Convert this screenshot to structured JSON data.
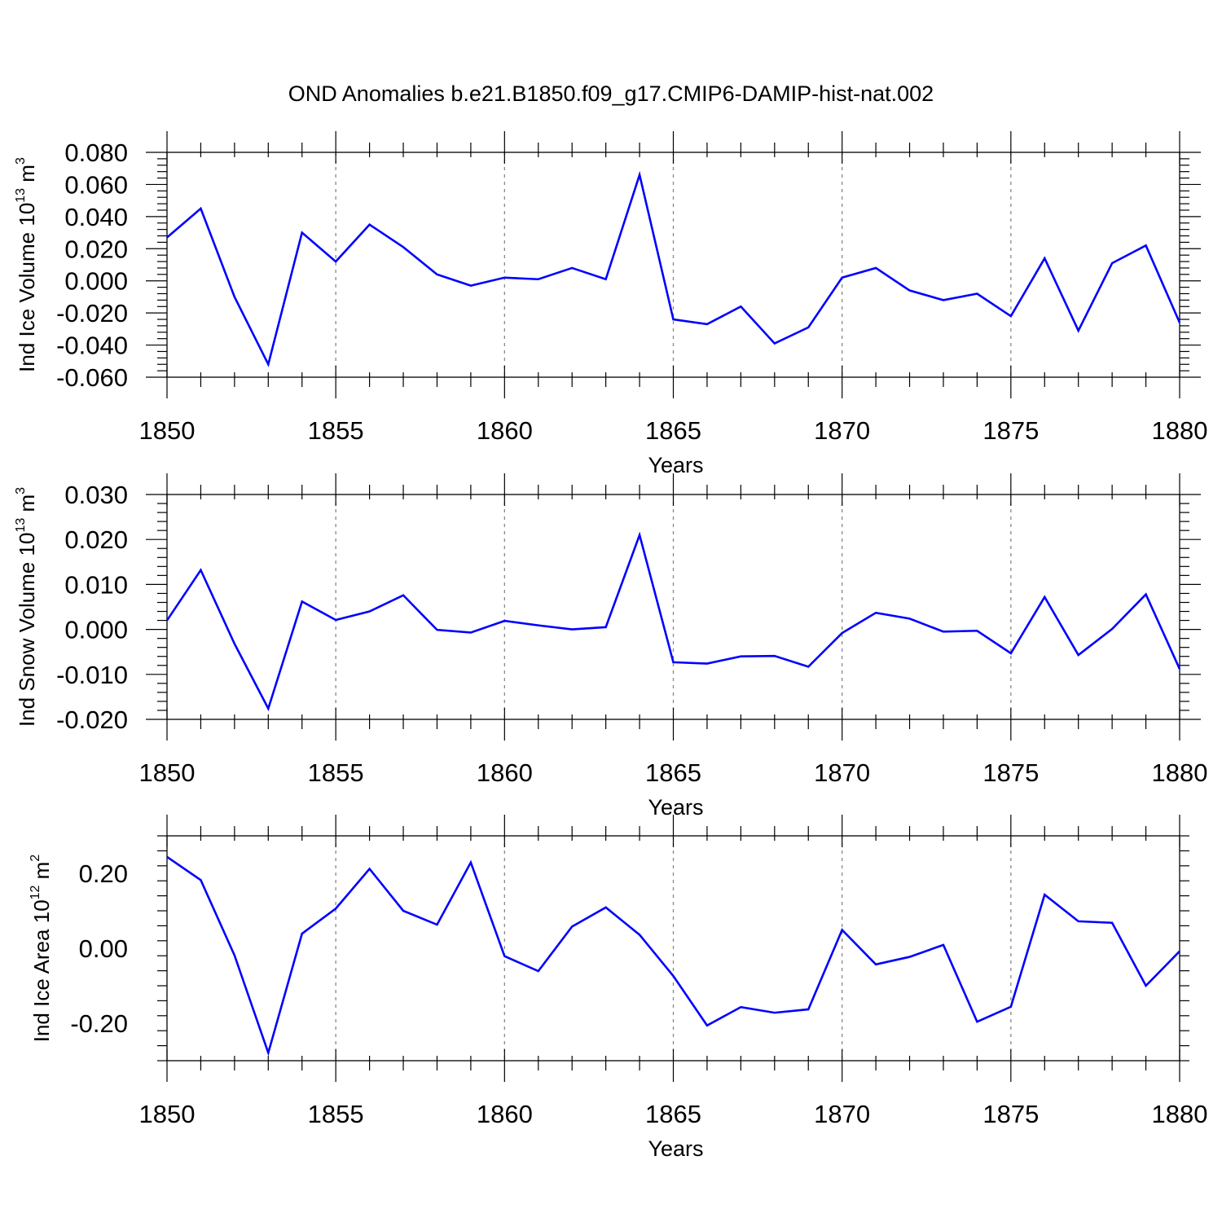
{
  "title": "OND Anomalies b.e21.B1850.f09_g17.CMIP6-DAMIP-hist-nat.002",
  "chart_data": [
    {
      "type": "line",
      "xlabel": "Years",
      "ylabel": "Ind Ice Volume 10",
      "ylabel_exp": "13",
      "ylabel_unit": " m",
      "ylabel_unit_exp": "3",
      "xlim": [
        1850,
        1880
      ],
      "ylim": [
        -0.06,
        0.08
      ],
      "x_ticks": [
        1850,
        1855,
        1860,
        1865,
        1870,
        1875,
        1880
      ],
      "x_tick_labels": [
        "1850",
        "1855",
        "1860",
        "1865",
        "1870",
        "1875",
        "1880"
      ],
      "y_ticks": [
        0.08,
        0.06,
        0.04,
        0.02,
        0.0,
        -0.02,
        -0.04,
        -0.06
      ],
      "y_tick_labels": [
        "0.080",
        "0.060",
        "0.040",
        "0.020",
        "0.000",
        "-0.020",
        "-0.040",
        "-0.060"
      ],
      "grid": "vertical dashed at major x ticks",
      "color": "#0000ff",
      "x": [
        1850,
        1851,
        1852,
        1853,
        1854,
        1855,
        1856,
        1857,
        1858,
        1859,
        1860,
        1861,
        1862,
        1863,
        1864,
        1865,
        1866,
        1867,
        1868,
        1869,
        1870,
        1871,
        1872,
        1873,
        1874,
        1875,
        1876,
        1877,
        1878,
        1879,
        1880
      ],
      "y": [
        0.027,
        0.045,
        -0.01,
        -0.052,
        0.03,
        0.012,
        0.035,
        0.021,
        0.004,
        -0.003,
        0.002,
        0.001,
        0.008,
        0.001,
        0.066,
        -0.024,
        -0.027,
        -0.016,
        -0.039,
        -0.029,
        0.002,
        0.008,
        -0.006,
        -0.012,
        -0.008,
        -0.022,
        0.014,
        -0.031,
        0.011,
        0.022,
        -0.026
      ]
    },
    {
      "type": "line",
      "xlabel": "Years",
      "ylabel": "Ind Snow Volume 10",
      "ylabel_exp": "13",
      "ylabel_unit": " m",
      "ylabel_unit_exp": "3",
      "xlim": [
        1850,
        1880
      ],
      "ylim": [
        -0.02,
        0.03
      ],
      "x_ticks": [
        1850,
        1855,
        1860,
        1865,
        1870,
        1875,
        1880
      ],
      "x_tick_labels": [
        "1850",
        "1855",
        "1860",
        "1865",
        "1870",
        "1875",
        "1880"
      ],
      "y_ticks": [
        0.03,
        0.02,
        0.01,
        0.0,
        -0.01,
        -0.02
      ],
      "y_tick_labels": [
        "0.030",
        "0.020",
        "0.010",
        "0.000",
        "-0.010",
        "-0.020"
      ],
      "grid": "vertical dashed at major x ticks",
      "color": "#0000ff",
      "x": [
        1850,
        1851,
        1852,
        1853,
        1854,
        1855,
        1856,
        1857,
        1858,
        1859,
        1860,
        1861,
        1862,
        1863,
        1864,
        1865,
        1866,
        1867,
        1868,
        1869,
        1870,
        1871,
        1872,
        1873,
        1874,
        1875,
        1876,
        1877,
        1878,
        1879,
        1880
      ],
      "y": [
        0.002,
        0.0132,
        -0.0032,
        -0.0176,
        0.0062,
        0.0021,
        0.004,
        0.0076,
        -0.0001,
        -0.0007,
        0.0019,
        0.0009,
        0.0,
        0.0005,
        0.021,
        -0.0073,
        -0.0076,
        -0.006,
        -0.0059,
        -0.0083,
        -0.0008,
        0.0037,
        0.0024,
        -0.0005,
        -0.0003,
        -0.0053,
        0.0072,
        -0.0057,
        0.0001,
        0.0078,
        -0.0088
      ]
    },
    {
      "type": "line",
      "xlabel": "Years",
      "ylabel": "Ind Ice Area 10",
      "ylabel_exp": "12",
      "ylabel_unit": " m",
      "ylabel_unit_exp": "2",
      "xlim": [
        1850,
        1880
      ],
      "ylim": [
        -0.3,
        0.3
      ],
      "x_ticks": [
        1850,
        1855,
        1860,
        1865,
        1870,
        1875,
        1880
      ],
      "x_tick_labels": [
        "1850",
        "1855",
        "1860",
        "1865",
        "1870",
        "1875",
        "1880"
      ],
      "y_ticks": [
        0.2,
        0.0,
        -0.2
      ],
      "y_tick_labels": [
        "0.20",
        "0.00",
        "-0.20"
      ],
      "grid": "vertical dashed at major x ticks",
      "color": "#0000ff",
      "x": [
        1850,
        1851,
        1852,
        1853,
        1854,
        1855,
        1856,
        1857,
        1858,
        1859,
        1860,
        1861,
        1862,
        1863,
        1864,
        1865,
        1866,
        1867,
        1868,
        1869,
        1870,
        1871,
        1872,
        1873,
        1874,
        1875,
        1876,
        1877,
        1878,
        1879,
        1880
      ],
      "y": [
        0.244,
        0.182,
        -0.019,
        -0.279,
        0.039,
        0.106,
        0.212,
        0.1,
        0.063,
        0.229,
        -0.021,
        -0.061,
        0.058,
        0.109,
        0.036,
        -0.074,
        -0.206,
        -0.157,
        -0.172,
        -0.163,
        0.049,
        -0.043,
        -0.023,
        0.009,
        -0.196,
        -0.156,
        0.143,
        0.072,
        0.068,
        -0.1,
        -0.008
      ]
    }
  ]
}
